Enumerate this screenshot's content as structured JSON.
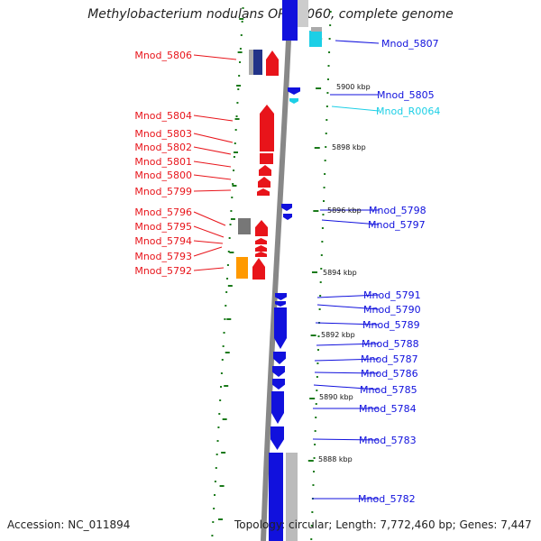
{
  "title": "Methylobacterium nodulans ORS 2060, complete genome",
  "footer": {
    "accession": "Accession: NC_011894",
    "topology": "Topology: circular; Length: 7,772,460 bp; Genes: 7,447"
  },
  "colors": {
    "forward": "#e8141a",
    "reverse": "#1111dd",
    "rna": "#1ccfe6",
    "grey": "#777777",
    "orange": "#ff9900",
    "ticks": "#1a7a1a",
    "backbone": "#888888"
  },
  "kbp_labels": [
    "5900 kbp",
    "5898 kbp",
    "5896 kbp",
    "5894 kbp",
    "5892 kbp",
    "5890 kbp",
    "5888 kbp"
  ],
  "left_genes": [
    "Mnod_5806",
    "Mnod_5804",
    "Mnod_5803",
    "Mnod_5802",
    "Mnod_5801",
    "Mnod_5800",
    "Mnod_5799",
    "Mnod_5796",
    "Mnod_5795",
    "Mnod_5794",
    "Mnod_5793",
    "Mnod_5792"
  ],
  "right_genes": [
    "Mnod_5807",
    "Mnod_5805",
    "Mnod_R0064",
    "Mnod_5798",
    "Mnod_5797",
    "Mnod_5791",
    "Mnod_5790",
    "Mnod_5789",
    "Mnod_5788",
    "Mnod_5787",
    "Mnod_5786",
    "Mnod_5785",
    "Mnod_5784",
    "Mnod_5783",
    "Mnod_5782"
  ]
}
